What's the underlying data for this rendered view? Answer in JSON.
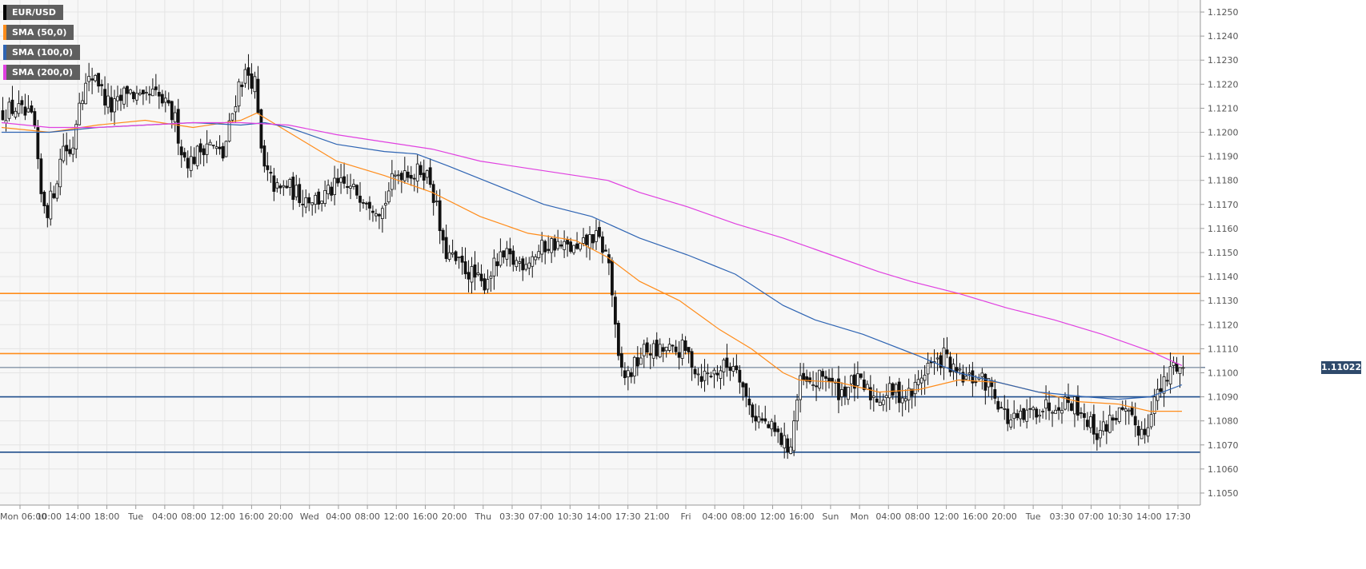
{
  "chart_data": {
    "type": "candlestick",
    "symbol": "EUR/USD",
    "legend": [
      {
        "label": "EUR/USD",
        "color": "#000000"
      },
      {
        "label": "SMA (50,0)",
        "color": "#ff8c1a"
      },
      {
        "label": "SMA (100,0)",
        "color": "#2e64b3"
      },
      {
        "label": "SMA (200,0)",
        "color": "#e040e0"
      }
    ],
    "y_ticks": [
      "1.1050",
      "1.1060",
      "1.1070",
      "1.1080",
      "1.1090",
      "1.1100",
      "1.1110",
      "1.1120",
      "1.1130",
      "1.1140",
      "1.1150",
      "1.1160",
      "1.1170",
      "1.1180",
      "1.1190",
      "1.1200",
      "1.1210",
      "1.1220",
      "1.1230",
      "1.1240",
      "1.1250"
    ],
    "x_ticks": [
      "Mon 06:00",
      "10:00",
      "14:00",
      "18:00",
      "Tue",
      "04:00",
      "08:00",
      "12:00",
      "16:00",
      "20:00",
      "Wed",
      "04:00",
      "08:00",
      "12:00",
      "16:00",
      "20:00",
      "Thu",
      "03:30",
      "07:00",
      "10:30",
      "14:00",
      "17:30",
      "21:00",
      "Fri",
      "04:00",
      "08:00",
      "12:00",
      "16:00",
      "Sun",
      "Mon",
      "04:00",
      "08:00",
      "12:00",
      "16:00",
      "20:00",
      "Tue",
      "03:30",
      "07:00",
      "10:30",
      "14:00",
      "17:30"
    ],
    "ylim": [
      1.1045,
      1.1255
    ],
    "last_price": "1.11022",
    "last_value": 1.11022,
    "horizontal_levels": [
      {
        "value": 1.1133,
        "color": "#ff8c1a"
      },
      {
        "value": 1.1108,
        "color": "#ff8c1a"
      },
      {
        "value": 1.109,
        "color": "#1f4e8c"
      },
      {
        "value": 1.1067,
        "color": "#1f4e8c"
      }
    ],
    "close_path": [
      [
        0,
        1.1208
      ],
      [
        20,
        1.121
      ],
      [
        40,
        1.1205
      ],
      [
        45,
        1.12
      ],
      [
        50,
        1.1175
      ],
      [
        60,
        1.1168
      ],
      [
        70,
        1.1178
      ],
      [
        80,
        1.1195
      ],
      [
        90,
        1.119
      ],
      [
        100,
        1.1215
      ],
      [
        110,
        1.122
      ],
      [
        120,
        1.1225
      ],
      [
        130,
        1.1215
      ],
      [
        140,
        1.121
      ],
      [
        150,
        1.1212
      ],
      [
        160,
        1.1218
      ],
      [
        170,
        1.1215
      ],
      [
        180,
        1.1212
      ],
      [
        190,
        1.1216
      ],
      [
        200,
        1.1214
      ],
      [
        210,
        1.121
      ],
      [
        220,
        1.1205
      ],
      [
        230,
        1.119
      ],
      [
        240,
        1.1188
      ],
      [
        250,
        1.1192
      ],
      [
        260,
        1.1196
      ],
      [
        270,
        1.1193
      ],
      [
        280,
        1.119
      ],
      [
        290,
        1.1205
      ],
      [
        300,
        1.122
      ],
      [
        310,
        1.1225
      ],
      [
        320,
        1.122
      ],
      [
        330,
        1.1185
      ],
      [
        340,
        1.118
      ],
      [
        350,
        1.1175
      ],
      [
        360,
        1.1178
      ],
      [
        370,
        1.1175
      ],
      [
        380,
        1.1173
      ],
      [
        390,
        1.1173
      ],
      [
        400,
        1.1172
      ],
      [
        410,
        1.1174
      ],
      [
        420,
        1.1177
      ],
      [
        430,
        1.1178
      ],
      [
        440,
        1.1176
      ],
      [
        450,
        1.1175
      ],
      [
        460,
        1.1173
      ],
      [
        470,
        1.117
      ],
      [
        480,
        1.1168
      ],
      [
        490,
        1.1178
      ],
      [
        500,
        1.1183
      ],
      [
        510,
        1.1185
      ],
      [
        520,
        1.1182
      ],
      [
        530,
        1.1185
      ],
      [
        540,
        1.118
      ],
      [
        550,
        1.1165
      ],
      [
        555,
        1.1152
      ],
      [
        565,
        1.1148
      ],
      [
        575,
        1.1145
      ],
      [
        585,
        1.1143
      ],
      [
        595,
        1.114
      ],
      [
        605,
        1.1136
      ],
      [
        615,
        1.1142
      ],
      [
        625,
        1.1146
      ],
      [
        635,
        1.1148
      ],
      [
        645,
        1.1146
      ],
      [
        655,
        1.1146
      ],
      [
        665,
        1.1148
      ],
      [
        675,
        1.115
      ],
      [
        685,
        1.1153
      ],
      [
        695,
        1.1154
      ],
      [
        705,
        1.1152
      ],
      [
        715,
        1.1152
      ],
      [
        725,
        1.115
      ],
      [
        735,
        1.1154
      ],
      [
        745,
        1.1157
      ],
      [
        755,
        1.1153
      ],
      [
        765,
        1.1145
      ],
      [
        770,
        1.1125
      ],
      [
        775,
        1.1105
      ],
      [
        785,
        1.1098
      ],
      [
        795,
        1.1102
      ],
      [
        805,
        1.1108
      ],
      [
        815,
        1.111
      ],
      [
        825,
        1.1108
      ],
      [
        835,
        1.111
      ],
      [
        845,
        1.1108
      ],
      [
        855,
        1.111
      ],
      [
        865,
        1.1107
      ],
      [
        875,
        1.11
      ],
      [
        885,
        1.1099
      ],
      [
        895,
        1.11
      ],
      [
        905,
        1.1102
      ],
      [
        915,
        1.1103
      ],
      [
        925,
        1.1104
      ],
      [
        935,
        1.109
      ],
      [
        945,
        1.1083
      ],
      [
        955,
        1.108
      ],
      [
        965,
        1.1077
      ],
      [
        975,
        1.1074
      ],
      [
        985,
        1.107
      ],
      [
        992,
        1.107
      ],
      [
        998,
        1.1085
      ],
      [
        1005,
        1.1097
      ],
      [
        1015,
        1.1094
      ],
      [
        1025,
        1.1096
      ],
      [
        1035,
        1.11
      ],
      [
        1045,
        1.1094
      ],
      [
        1055,
        1.1092
      ],
      [
        1065,
        1.1095
      ],
      [
        1075,
        1.1096
      ],
      [
        1085,
        1.1093
      ],
      [
        1095,
        1.109
      ],
      [
        1105,
        1.109
      ],
      [
        1115,
        1.1092
      ],
      [
        1125,
        1.1092
      ],
      [
        1135,
        1.109
      ],
      [
        1145,
        1.1092
      ],
      [
        1155,
        1.1098
      ],
      [
        1165,
        1.1104
      ],
      [
        1175,
        1.1103
      ],
      [
        1185,
        1.1108
      ],
      [
        1195,
        1.11
      ],
      [
        1205,
        1.1098
      ],
      [
        1215,
        1.1097
      ],
      [
        1225,
        1.1098
      ],
      [
        1235,
        1.1096
      ],
      [
        1245,
        1.1094
      ],
      [
        1255,
        1.1086
      ],
      [
        1265,
        1.108
      ],
      [
        1275,
        1.108
      ],
      [
        1285,
        1.1081
      ],
      [
        1295,
        1.1084
      ],
      [
        1305,
        1.1086
      ],
      [
        1315,
        1.1086
      ],
      [
        1325,
        1.1088
      ],
      [
        1335,
        1.1088
      ],
      [
        1345,
        1.1088
      ],
      [
        1355,
        1.1085
      ],
      [
        1365,
        1.108
      ],
      [
        1375,
        1.1075
      ],
      [
        1385,
        1.1077
      ],
      [
        1395,
        1.1082
      ],
      [
        1405,
        1.1083
      ],
      [
        1415,
        1.1081
      ],
      [
        1425,
        1.1078
      ],
      [
        1435,
        1.1075
      ],
      [
        1440,
        1.108
      ],
      [
        1445,
        1.1088
      ],
      [
        1455,
        1.1092
      ],
      [
        1465,
        1.1098
      ],
      [
        1470,
        1.1103
      ],
      [
        1475,
        1.1104
      ],
      [
        1480,
        1.1102
      ]
    ],
    "sma50": [
      [
        0,
        1.1202
      ],
      [
        60,
        1.12
      ],
      [
        120,
        1.1203
      ],
      [
        180,
        1.1205
      ],
      [
        240,
        1.1202
      ],
      [
        300,
        1.1205
      ],
      [
        320,
        1.1208
      ],
      [
        360,
        1.12
      ],
      [
        420,
        1.1188
      ],
      [
        480,
        1.1182
      ],
      [
        540,
        1.1175
      ],
      [
        600,
        1.1165
      ],
      [
        660,
        1.1158
      ],
      [
        720,
        1.1155
      ],
      [
        760,
        1.1148
      ],
      [
        800,
        1.1138
      ],
      [
        850,
        1.113
      ],
      [
        900,
        1.1118
      ],
      [
        940,
        1.111
      ],
      [
        980,
        1.11
      ],
      [
        1000,
        1.1097
      ],
      [
        1050,
        1.1096
      ],
      [
        1100,
        1.1092
      ],
      [
        1150,
        1.1093
      ],
      [
        1200,
        1.1097
      ],
      [
        1250,
        1.1096
      ],
      [
        1300,
        1.1092
      ],
      [
        1350,
        1.1088
      ],
      [
        1400,
        1.1087
      ],
      [
        1440,
        1.1084
      ],
      [
        1480,
        1.1084
      ]
    ],
    "sma100": [
      [
        0,
        1.12
      ],
      [
        60,
        1.12
      ],
      [
        120,
        1.1202
      ],
      [
        180,
        1.1203
      ],
      [
        240,
        1.1204
      ],
      [
        300,
        1.1203
      ],
      [
        330,
        1.1204
      ],
      [
        360,
        1.1202
      ],
      [
        420,
        1.1195
      ],
      [
        480,
        1.1192
      ],
      [
        520,
        1.1191
      ],
      [
        560,
        1.1186
      ],
      [
        620,
        1.1178
      ],
      [
        680,
        1.117
      ],
      [
        740,
        1.1165
      ],
      [
        800,
        1.1156
      ],
      [
        860,
        1.1149
      ],
      [
        920,
        1.1141
      ],
      [
        980,
        1.1128
      ],
      [
        1020,
        1.1122
      ],
      [
        1080,
        1.1116
      ],
      [
        1150,
        1.1107
      ],
      [
        1200,
        1.11
      ],
      [
        1250,
        1.1096
      ],
      [
        1300,
        1.1092
      ],
      [
        1360,
        1.109
      ],
      [
        1400,
        1.1089
      ],
      [
        1440,
        1.109
      ],
      [
        1480,
        1.1095
      ]
    ],
    "sma200": [
      [
        0,
        1.1204
      ],
      [
        60,
        1.1202
      ],
      [
        120,
        1.1202
      ],
      [
        180,
        1.1203
      ],
      [
        240,
        1.1204
      ],
      [
        300,
        1.1204
      ],
      [
        360,
        1.1203
      ],
      [
        420,
        1.1199
      ],
      [
        480,
        1.1196
      ],
      [
        540,
        1.1193
      ],
      [
        600,
        1.1188
      ],
      [
        660,
        1.1185
      ],
      [
        720,
        1.1182
      ],
      [
        760,
        1.118
      ],
      [
        800,
        1.1175
      ],
      [
        860,
        1.1169
      ],
      [
        920,
        1.1162
      ],
      [
        980,
        1.1156
      ],
      [
        1040,
        1.1149
      ],
      [
        1100,
        1.1142
      ],
      [
        1140,
        1.1138
      ],
      [
        1200,
        1.1133
      ],
      [
        1260,
        1.1127
      ],
      [
        1320,
        1.1122
      ],
      [
        1380,
        1.1116
      ],
      [
        1440,
        1.1109
      ],
      [
        1480,
        1.1103
      ]
    ]
  }
}
